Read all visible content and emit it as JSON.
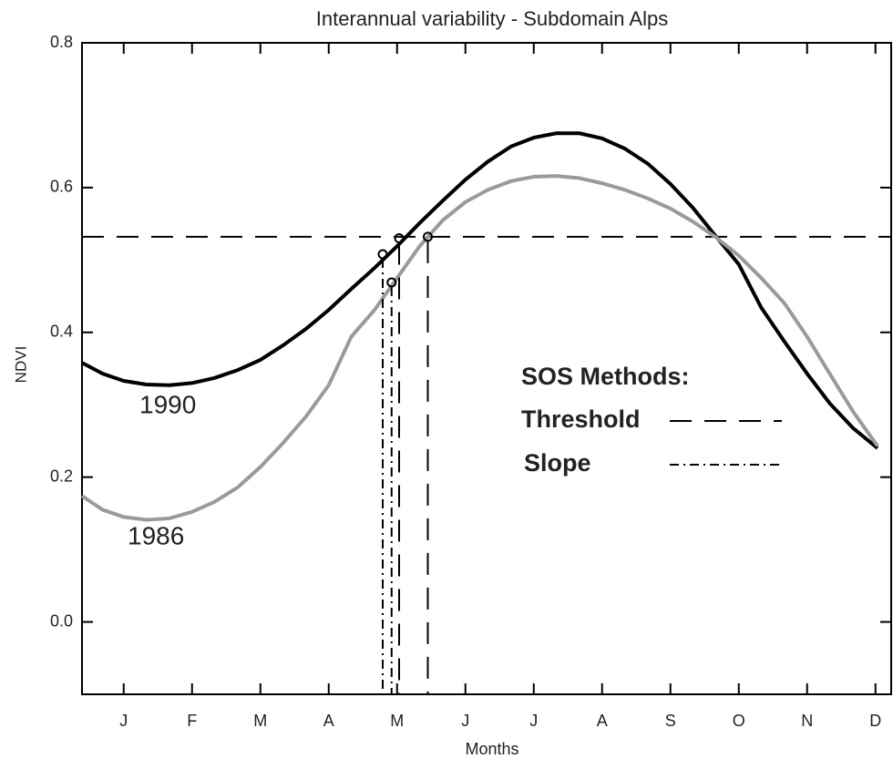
{
  "chart_data": {
    "type": "line",
    "title": "Interannual variability - Subdomain Alps",
    "x_label": "Months",
    "y_label": "NDVI",
    "xlim": [
      0.39,
      12.23
    ],
    "ylim": [
      -0.1,
      0.8
    ],
    "xticks": [
      {
        "value": 1,
        "label": "J"
      },
      {
        "value": 2,
        "label": "F"
      },
      {
        "value": 3,
        "label": "M"
      },
      {
        "value": 4,
        "label": "A"
      },
      {
        "value": 5,
        "label": "M"
      },
      {
        "value": 6,
        "label": "J"
      },
      {
        "value": 7,
        "label": "J"
      },
      {
        "value": 8,
        "label": "A"
      },
      {
        "value": 9,
        "label": "S"
      },
      {
        "value": 10,
        "label": "O"
      },
      {
        "value": 11,
        "label": "N"
      },
      {
        "value": 12,
        "label": "D"
      }
    ],
    "yticks": [
      {
        "value": 0,
        "label": "0.0"
      },
      {
        "value": 0.2,
        "label": "0.2"
      },
      {
        "value": 0.4,
        "label": "0.4"
      },
      {
        "value": 0.6,
        "label": "0.6"
      },
      {
        "value": 0.8,
        "label": "0.8"
      }
    ],
    "x": [
      0.39,
      0.69,
      1.0,
      1.33,
      1.67,
      2.0,
      2.33,
      2.67,
      3.0,
      3.33,
      3.67,
      4.0,
      4.33,
      4.67,
      5.0,
      5.33,
      5.67,
      6.0,
      6.33,
      6.67,
      7.0,
      7.33,
      7.67,
      8.0,
      8.33,
      8.67,
      9.0,
      9.33,
      9.67,
      10.0,
      10.33,
      10.67,
      11.0,
      11.33,
      11.67,
      12.03
    ],
    "series": [
      {
        "name": "1990",
        "color": "#000000",
        "values": [
          0.358,
          0.343,
          0.333,
          0.328,
          0.327,
          0.33,
          0.337,
          0.348,
          0.362,
          0.382,
          0.405,
          0.431,
          0.46,
          0.489,
          0.519,
          0.551,
          0.582,
          0.611,
          0.636,
          0.657,
          0.669,
          0.675,
          0.675,
          0.668,
          0.654,
          0.633,
          0.605,
          0.572,
          0.532,
          0.494,
          0.434,
          0.387,
          0.343,
          0.302,
          0.268,
          0.24
        ]
      },
      {
        "name": "1986",
        "color": "#9a9a9a",
        "values": [
          0.174,
          0.155,
          0.145,
          0.141,
          0.143,
          0.152,
          0.166,
          0.186,
          0.214,
          0.247,
          0.284,
          0.327,
          0.394,
          0.431,
          0.475,
          0.519,
          0.555,
          0.58,
          0.597,
          0.609,
          0.615,
          0.616,
          0.613,
          0.606,
          0.597,
          0.585,
          0.571,
          0.553,
          0.531,
          0.506,
          0.475,
          0.44,
          0.394,
          0.343,
          0.291,
          0.243
        ]
      }
    ],
    "threshold": 0.532,
    "legend_title": "SOS Methods:",
    "legend": [
      {
        "label": "Threshold",
        "style": "dash"
      },
      {
        "label": "Slope",
        "style": "dashdot"
      }
    ],
    "sos_markers": [
      {
        "x": 4.79,
        "y": 0.508,
        "style": "dashdot"
      },
      {
        "x": 5.03,
        "y": 0.53,
        "style": "dash"
      },
      {
        "x": 4.92,
        "y": 0.469,
        "style": "dashdot"
      },
      {
        "x": 5.45,
        "y": 0.532,
        "style": "dash"
      }
    ]
  }
}
